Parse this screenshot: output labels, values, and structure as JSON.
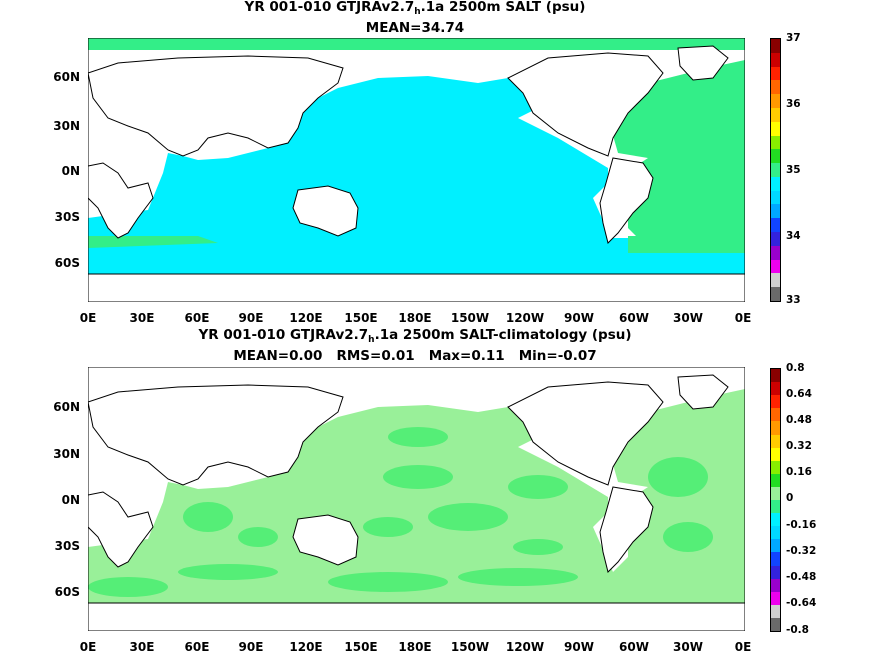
{
  "panel1": {
    "title_pre": "YR 001-010 GTJRAv2.7",
    "title_sub": "h",
    "title_post": ".1a 2500m SALT (psu)",
    "stats": "MEAN=34.74",
    "colorbar_ticks": [
      "37",
      "36",
      "35",
      "34",
      "33"
    ]
  },
  "panel2": {
    "title_pre": "YR 001-010 GTJRAv2.7",
    "title_sub": "h",
    "title_post": ".1a 2500m SALT-climatology (psu)",
    "stats": "MEAN=0.00   RMS=0.01   Max=0.11   Min=-0.07",
    "colorbar_ticks": [
      "0.8",
      "0.64",
      "0.48",
      "0.32",
      "0.16",
      "0",
      "-0.16",
      "-0.32",
      "-0.48",
      "-0.64",
      "-0.8"
    ]
  },
  "axes": {
    "lat_labels": [
      "60N",
      "30N",
      "0N",
      "30S",
      "60S"
    ],
    "lon_labels": [
      "0E",
      "30E",
      "60E",
      "90E",
      "120E",
      "150E",
      "180E",
      "150W",
      "120W",
      "90W",
      "60W",
      "30W",
      "0E"
    ]
  },
  "colors": {
    "pacific_indian_salt": "#00f0ff",
    "atlantic_salt": "#33ee88",
    "anomaly_pale_green": "#99f099",
    "anomaly_green": "#55ee77",
    "land": "#ffffff",
    "colorbar1": [
      "#6a6a6a",
      "#d0d0d0",
      "#ee00ee",
      "#9900cc",
      "#3322dd",
      "#1144ff",
      "#00a8ff",
      "#00d8ff",
      "#00f0ff",
      "#33ee88",
      "#22dd22",
      "#88ee00",
      "#ffff00",
      "#ffcc00",
      "#ff9900",
      "#ff6600",
      "#ff2200",
      "#cc0000",
      "#880000"
    ],
    "colorbar2": [
      "#6a6a6a",
      "#d0d0d0",
      "#ee00ee",
      "#9900cc",
      "#3322dd",
      "#1144ff",
      "#00a8ff",
      "#00d8ff",
      "#00f0ff",
      "#33ee88",
      "#99f099",
      "#22dd22",
      "#88ee00",
      "#ffff00",
      "#ffcc00",
      "#ff9900",
      "#ff6600",
      "#ff2200",
      "#cc0000",
      "#880000"
    ]
  }
}
